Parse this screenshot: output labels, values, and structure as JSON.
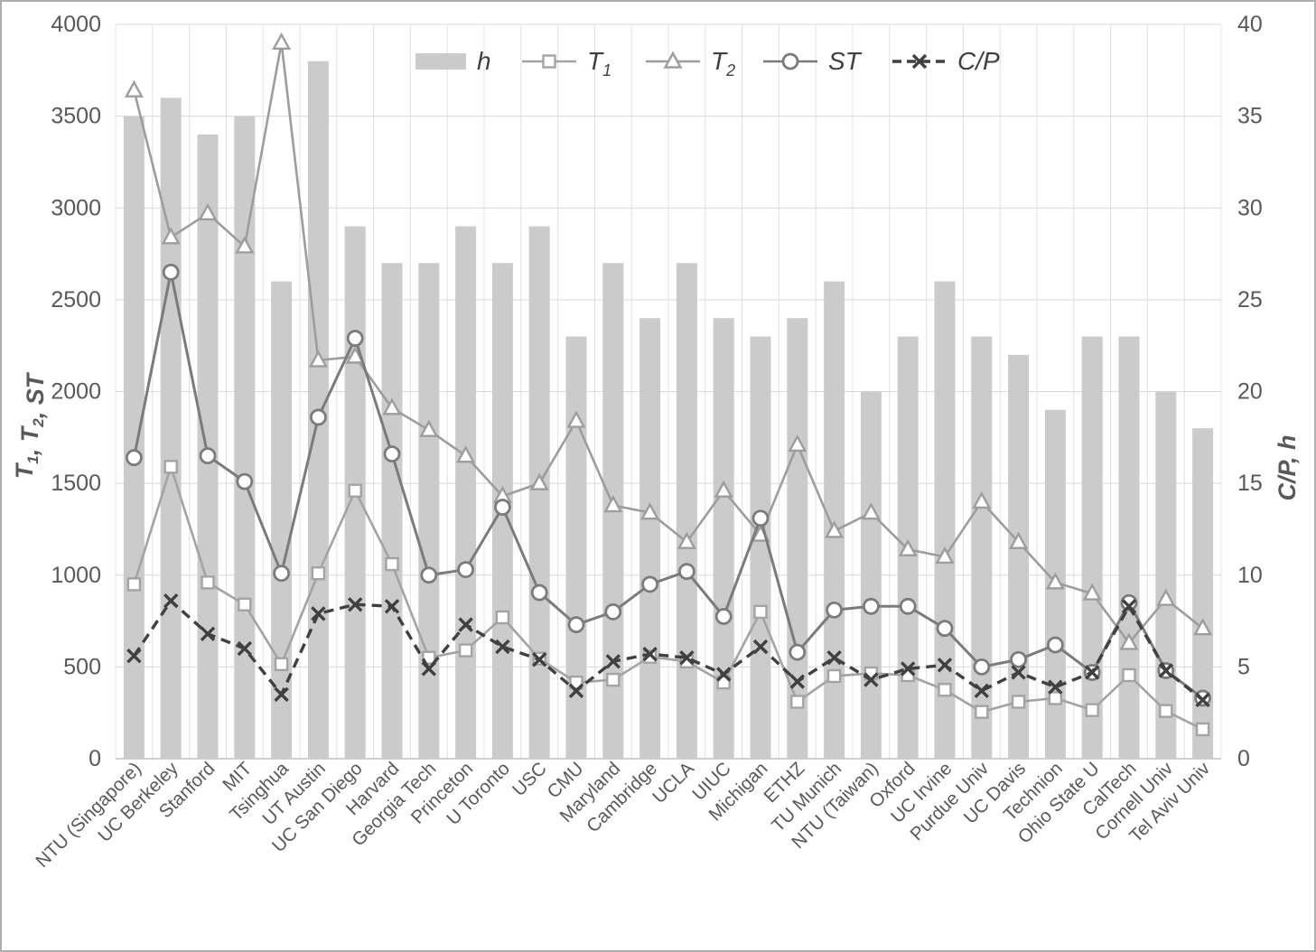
{
  "chart_data": {
    "type": "combo-bar-line",
    "title": "",
    "categories": [
      "NTU (Singapore)",
      "UC Berkeley",
      "Stanford",
      "MIT",
      "Tsinghua",
      "UT Austin",
      "UC San Diego",
      "Harvard",
      "Georgia Tech",
      "Princeton",
      "U Toronto",
      "USC",
      "CMU",
      "Maryland",
      "Cambridge",
      "UCLA",
      "UIUC",
      "Michigan",
      "ETHZ",
      "TU Munich",
      "NTU (Taiwan)",
      "Oxford",
      "UC Irvine",
      "Purdue Univ",
      "UC Davis",
      "Technion",
      "Ohio State U",
      "CalTech",
      "Cornell Univ",
      "Tel Aviv Univ"
    ],
    "series": [
      {
        "name": "h",
        "sub": "",
        "kind": "bar",
        "axis": "right",
        "marker": "none",
        "dashed": false,
        "values": [
          35,
          36,
          34,
          35,
          26,
          38,
          29,
          27,
          27,
          29,
          27,
          29,
          23,
          27,
          24,
          27,
          24,
          23,
          24,
          26,
          20,
          23,
          26,
          23,
          22,
          19,
          23,
          23,
          20,
          18
        ]
      },
      {
        "name": "T",
        "sub": "1",
        "kind": "line",
        "axis": "left",
        "marker": "square",
        "dashed": false,
        "values": [
          950,
          1590,
          960,
          840,
          515,
          1010,
          1460,
          1060,
          550,
          590,
          770,
          545,
          415,
          430,
          555,
          530,
          415,
          800,
          310,
          450,
          465,
          455,
          375,
          255,
          310,
          330,
          265,
          455,
          260,
          160
        ]
      },
      {
        "name": "T",
        "sub": "2",
        "kind": "line",
        "axis": "left",
        "marker": "triangle",
        "dashed": false,
        "values": [
          3640,
          2840,
          2970,
          2790,
          3900,
          2170,
          2190,
          1910,
          1790,
          1650,
          1430,
          1500,
          1840,
          1380,
          1340,
          1180,
          1460,
          1220,
          1710,
          1240,
          1340,
          1140,
          1100,
          1400,
          1180,
          960,
          900,
          630,
          870,
          710
        ]
      },
      {
        "name": "ST",
        "sub": "",
        "kind": "line",
        "axis": "left",
        "marker": "circle",
        "dashed": false,
        "values": [
          1640,
          2650,
          1650,
          1510,
          1010,
          1860,
          2290,
          1660,
          1000,
          1030,
          1370,
          905,
          730,
          800,
          950,
          1020,
          775,
          1310,
          580,
          810,
          830,
          830,
          710,
          500,
          540,
          620,
          470,
          850,
          480,
          330
        ]
      },
      {
        "name": "C/P",
        "sub": "",
        "kind": "line",
        "axis": "right",
        "marker": "x",
        "dashed": true,
        "values": [
          5.6,
          8.6,
          6.8,
          6.0,
          3.5,
          7.9,
          8.4,
          8.3,
          4.9,
          7.3,
          6.1,
          5.4,
          3.7,
          5.3,
          5.7,
          5.5,
          4.6,
          6.1,
          4.2,
          5.5,
          4.3,
          4.9,
          5.1,
          3.7,
          4.7,
          3.9,
          4.7,
          8.3,
          4.8,
          3.2
        ]
      }
    ],
    "left_axis": {
      "label_parts": [
        {
          "t": "T",
          "sub": false
        },
        {
          "t": "1",
          "sub": true
        },
        {
          "t": ", ",
          "sub": false
        },
        {
          "t": "T",
          "sub": false
        },
        {
          "t": "2",
          "sub": true
        },
        {
          "t": ", ST",
          "sub": false
        }
      ],
      "min": 0,
      "max": 4000,
      "step": 500,
      "ticks": [
        "0",
        "500",
        "1000",
        "1500",
        "2000",
        "2500",
        "3000",
        "3500",
        "4000"
      ]
    },
    "right_axis": {
      "label": "C/P, h",
      "min": 0,
      "max": 40,
      "step": 5,
      "ticks": [
        "0",
        "5",
        "10",
        "15",
        "20",
        "25",
        "30",
        "35",
        "40"
      ]
    },
    "legend_position": "top-center",
    "grid": true
  },
  "colors": {
    "bar": "#cbcbcb",
    "t1_line": "#a3a3a3",
    "t2_line": "#9d9d9d",
    "st_line": "#7b7b7b",
    "cp_line": "#404040",
    "grid_h": "#d9d9d9",
    "grid_v": "#e2e2e2",
    "axis_line": "#c0c0c0",
    "tick_text": "#595959",
    "legend_text": "#3f3f3f",
    "marker_fill": "#ffffff"
  }
}
